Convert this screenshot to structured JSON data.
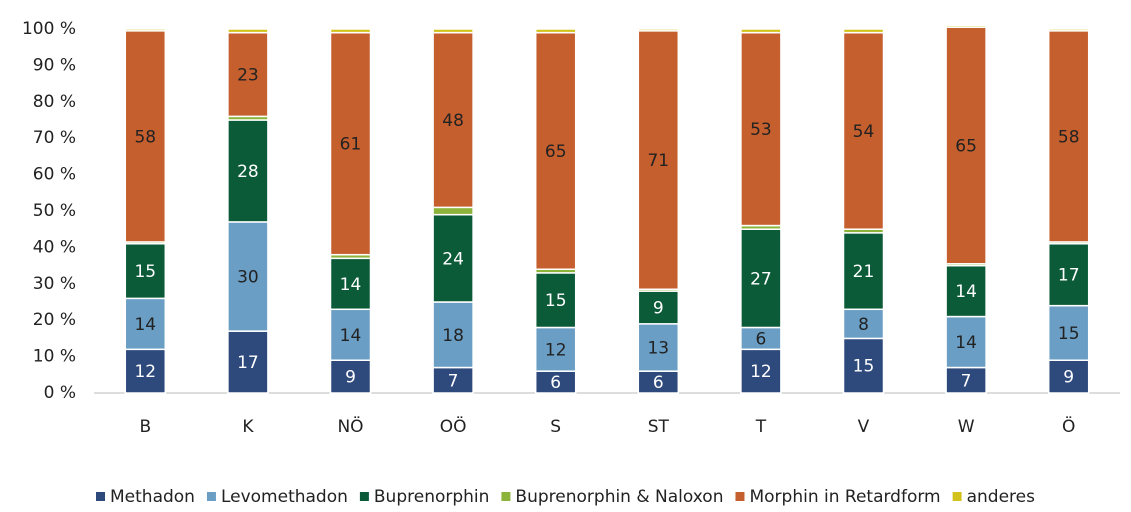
{
  "chart_data": {
    "type": "stacked_bar",
    "categories": [
      "B",
      "K",
      "NÖ",
      "OÖ",
      "S",
      "ST",
      "T",
      "V",
      "W",
      "Ö"
    ],
    "series": [
      {
        "name": "Methadon",
        "color": "#2e4a7d",
        "values": [
          12,
          17,
          9,
          7,
          6,
          6,
          12,
          15,
          7,
          9
        ]
      },
      {
        "name": "Levomethadon",
        "color": "#6a9ec4",
        "values": [
          14,
          30,
          14,
          18,
          12,
          13,
          6,
          8,
          14,
          15
        ]
      },
      {
        "name": "Buprenorphin",
        "color": "#0b5a38",
        "values": [
          15,
          28,
          14,
          24,
          15,
          9,
          27,
          21,
          14,
          17
        ]
      },
      {
        "name": "Buprenorphin & Naloxon",
        "color": "#8cb33a",
        "values": [
          0.5,
          1,
          1,
          2,
          1,
          0.5,
          1,
          1,
          0.5,
          0.5
        ]
      },
      {
        "name": "Morphin in Retardform",
        "color": "#c55f2e",
        "values": [
          58,
          23,
          61,
          48,
          65,
          71,
          53,
          54,
          65,
          58
        ]
      },
      {
        "name": "anderes",
        "color": "#d4c21c",
        "values": [
          0.5,
          1,
          1,
          1,
          1,
          0.5,
          1,
          1,
          0.5,
          0.5
        ]
      }
    ],
    "ylim": [
      0,
      100
    ],
    "yticks": [
      {
        "value": 0,
        "label": "0 %"
      },
      {
        "value": 10,
        "label": "10 %"
      },
      {
        "value": 20,
        "label": "20 %"
      },
      {
        "value": 30,
        "label": "30 %"
      },
      {
        "value": 40,
        "label": "40 %"
      },
      {
        "value": 50,
        "label": "50 %"
      },
      {
        "value": 60,
        "label": "60 %"
      },
      {
        "value": 70,
        "label": "70 %"
      },
      {
        "value": 80,
        "label": "80 %"
      },
      {
        "value": 90,
        "label": "90 %"
      },
      {
        "value": 100,
        "label": "100 %"
      }
    ],
    "legend": "bottom"
  }
}
